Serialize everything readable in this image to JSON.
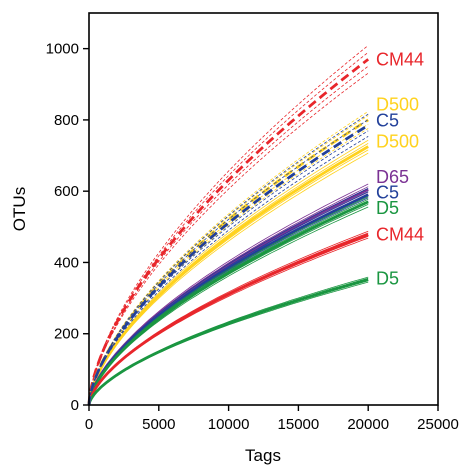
{
  "chart_data": {
    "type": "line",
    "xlabel": "Tags",
    "ylabel": "OTUs",
    "xlim": [
      0,
      25000
    ],
    "ylim": [
      0,
      1100
    ],
    "x_ticks": [
      0,
      5000,
      10000,
      15000,
      20000,
      25000
    ],
    "y_ticks": [
      0,
      200,
      400,
      600,
      800,
      1000
    ],
    "grid": false,
    "series": [
      {
        "name": "CM44",
        "color": "#e8262b",
        "dashed": true,
        "end": [
          20000,
          970
        ],
        "spread": 0.04
      },
      {
        "name": "D500",
        "color": "#ffd21e",
        "dashed": true,
        "end": [
          20000,
          800
        ],
        "spread": 0.03
      },
      {
        "name": "C5",
        "color": "#22409a",
        "dashed": true,
        "end": [
          20000,
          785
        ],
        "spread": 0.04
      },
      {
        "name": "D500",
        "color": "#ffd21e",
        "dashed": false,
        "end": [
          20000,
          725
        ],
        "spread": 0.025
      },
      {
        "name": "D65",
        "color": "#7b3294",
        "dashed": false,
        "end": [
          20000,
          605
        ],
        "spread": 0.025
      },
      {
        "name": "C5",
        "color": "#22409a",
        "dashed": false,
        "end": [
          20000,
          590
        ],
        "spread": 0.03
      },
      {
        "name": "D5",
        "color": "#1a9641",
        "dashed": false,
        "end": [
          20000,
          570
        ],
        "spread": 0.025
      },
      {
        "name": "CM44",
        "color": "#e8262b",
        "dashed": false,
        "end": [
          20000,
          478
        ],
        "spread": 0.02
      },
      {
        "name": "D5",
        "color": "#1a9641",
        "dashed": false,
        "end": [
          20000,
          352
        ],
        "spread": 0.02
      }
    ],
    "labels": [
      {
        "text": "CM44",
        "color": "#e8262b",
        "y": 970
      },
      {
        "text": "D500",
        "color": "#ffd21e",
        "y": 843
      },
      {
        "text": "C5",
        "color": "#22409a",
        "y": 798
      },
      {
        "text": "D500",
        "color": "#ffd21e",
        "y": 740
      },
      {
        "text": "D65",
        "color": "#7b3294",
        "y": 640
      },
      {
        "text": "C5",
        "color": "#22409a",
        "y": 597
      },
      {
        "text": "D5",
        "color": "#1a9641",
        "y": 553
      },
      {
        "text": "CM44",
        "color": "#e8262b",
        "y": 478
      },
      {
        "text": "D5",
        "color": "#1a9641",
        "y": 355
      }
    ]
  }
}
